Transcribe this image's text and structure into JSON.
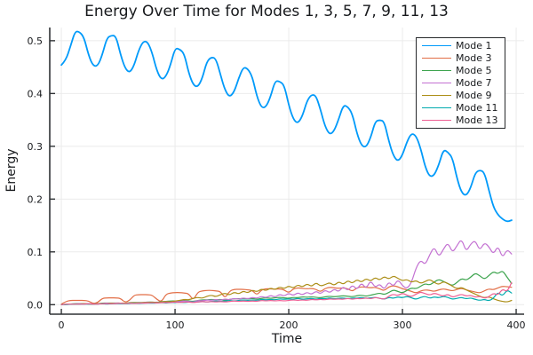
{
  "title": "Energy Over Time for Modes 1, 3, 5, 7, 9, 11, 13",
  "chart_data": {
    "type": "line",
    "title": "Energy Over Time for Modes 1, 3, 5, 7, 9, 11, 13",
    "xlabel": "Time",
    "ylabel": "Energy",
    "xlim": [
      -10.2,
      407
    ],
    "ylim": [
      -0.018,
      0.525
    ],
    "xticks": [
      0,
      100,
      200,
      300,
      400
    ],
    "xtick_labels": [
      "0",
      "100",
      "200",
      "300",
      "400"
    ],
    "yticks": [
      0.0,
      0.1,
      0.2,
      0.3,
      0.4,
      0.5
    ],
    "ytick_labels": [
      "0.0",
      "0.1",
      "0.2",
      "0.3",
      "0.4",
      "0.5"
    ],
    "grid": true,
    "legend_position": "top-right",
    "axis_color": "#2f3235",
    "grid_color": "#ebebeb",
    "background_color": "#ffffff",
    "x": [
      0,
      4,
      8,
      12,
      16,
      20,
      24,
      28,
      32,
      36,
      40,
      44,
      48,
      52,
      56,
      60,
      64,
      68,
      72,
      76,
      80,
      84,
      88,
      92,
      96,
      100,
      104,
      108,
      112,
      116,
      120,
      124,
      128,
      132,
      136,
      140,
      144,
      148,
      152,
      156,
      160,
      164,
      168,
      172,
      176,
      180,
      184,
      188,
      192,
      196,
      200,
      204,
      208,
      212,
      216,
      220,
      224,
      228,
      232,
      236,
      240,
      244,
      248,
      252,
      256,
      260,
      264,
      268,
      272,
      276,
      280,
      284,
      288,
      292,
      296,
      300,
      304,
      308,
      312,
      316,
      320,
      324,
      328,
      332,
      336,
      340,
      344,
      348,
      352,
      356,
      360,
      364,
      368,
      372,
      376,
      380,
      384,
      388,
      392,
      396
    ],
    "series": [
      {
        "name": "Mode 1",
        "color": "#009AFA",
        "width": 1.8,
        "values": [
          0.454,
          0.463,
          0.489,
          0.518,
          0.517,
          0.506,
          0.472,
          0.452,
          0.452,
          0.473,
          0.505,
          0.51,
          0.509,
          0.474,
          0.448,
          0.439,
          0.453,
          0.482,
          0.499,
          0.498,
          0.476,
          0.443,
          0.426,
          0.432,
          0.454,
          0.486,
          0.484,
          0.476,
          0.439,
          0.416,
          0.412,
          0.429,
          0.461,
          0.469,
          0.466,
          0.435,
          0.406,
          0.393,
          0.403,
          0.429,
          0.45,
          0.447,
          0.432,
          0.394,
          0.373,
          0.374,
          0.394,
          0.424,
          0.423,
          0.416,
          0.378,
          0.351,
          0.343,
          0.357,
          0.386,
          0.398,
          0.396,
          0.369,
          0.337,
          0.322,
          0.329,
          0.352,
          0.378,
          0.375,
          0.361,
          0.324,
          0.301,
          0.298,
          0.316,
          0.347,
          0.35,
          0.347,
          0.31,
          0.282,
          0.271,
          0.283,
          0.309,
          0.325,
          0.32,
          0.296,
          0.261,
          0.242,
          0.245,
          0.265,
          0.294,
          0.289,
          0.278,
          0.239,
          0.212,
          0.206,
          0.221,
          0.25,
          0.255,
          0.251,
          0.217,
          0.185,
          0.17,
          0.162,
          0.157,
          0.16
        ]
      },
      {
        "name": "Mode 3",
        "color": "#E26E46",
        "width": 1.2,
        "values": [
          0.001,
          0.006,
          0.008,
          0.008,
          0.008,
          0.008,
          0.007,
          0.002,
          0.004,
          0.012,
          0.013,
          0.013,
          0.013,
          0.012,
          0.004,
          0.008,
          0.018,
          0.019,
          0.019,
          0.019,
          0.018,
          0.01,
          0.005,
          0.02,
          0.022,
          0.023,
          0.023,
          0.022,
          0.021,
          0.008,
          0.024,
          0.026,
          0.027,
          0.027,
          0.026,
          0.025,
          0.012,
          0.026,
          0.029,
          0.029,
          0.029,
          0.028,
          0.027,
          0.018,
          0.028,
          0.03,
          0.03,
          0.029,
          0.03,
          0.028,
          0.022,
          0.03,
          0.032,
          0.031,
          0.03,
          0.031,
          0.029,
          0.024,
          0.031,
          0.033,
          0.032,
          0.031,
          0.032,
          0.03,
          0.025,
          0.032,
          0.034,
          0.033,
          0.032,
          0.033,
          0.03,
          0.026,
          0.034,
          0.036,
          0.034,
          0.03,
          0.028,
          0.025,
          0.022,
          0.026,
          0.028,
          0.027,
          0.025,
          0.028,
          0.03,
          0.028,
          0.026,
          0.029,
          0.031,
          0.028,
          0.026,
          0.024,
          0.022,
          0.026,
          0.03,
          0.028,
          0.032,
          0.035,
          0.034,
          0.033
        ]
      },
      {
        "name": "Mode 5",
        "color": "#3DA44E",
        "width": 1.2,
        "values": [
          0.0,
          0.001,
          0.001,
          0.002,
          0.002,
          0.002,
          0.002,
          0.001,
          0.002,
          0.003,
          0.003,
          0.003,
          0.003,
          0.003,
          0.002,
          0.004,
          0.004,
          0.004,
          0.004,
          0.005,
          0.005,
          0.004,
          0.006,
          0.006,
          0.007,
          0.007,
          0.007,
          0.008,
          0.007,
          0.006,
          0.008,
          0.009,
          0.009,
          0.01,
          0.009,
          0.01,
          0.008,
          0.01,
          0.011,
          0.011,
          0.012,
          0.011,
          0.012,
          0.01,
          0.012,
          0.013,
          0.012,
          0.013,
          0.014,
          0.013,
          0.012,
          0.014,
          0.013,
          0.015,
          0.014,
          0.015,
          0.014,
          0.013,
          0.015,
          0.016,
          0.015,
          0.016,
          0.017,
          0.016,
          0.015,
          0.017,
          0.018,
          0.016,
          0.018,
          0.02,
          0.022,
          0.019,
          0.023,
          0.028,
          0.025,
          0.022,
          0.027,
          0.032,
          0.03,
          0.035,
          0.04,
          0.037,
          0.043,
          0.048,
          0.044,
          0.04,
          0.036,
          0.042,
          0.05,
          0.046,
          0.052,
          0.06,
          0.055,
          0.048,
          0.055,
          0.063,
          0.058,
          0.065,
          0.052,
          0.04
        ]
      },
      {
        "name": "Mode 7",
        "color": "#C371D2",
        "width": 1.2,
        "values": [
          0.0,
          0.001,
          0.001,
          0.001,
          0.002,
          0.001,
          0.002,
          0.001,
          0.002,
          0.002,
          0.003,
          0.002,
          0.003,
          0.003,
          0.002,
          0.003,
          0.004,
          0.003,
          0.004,
          0.005,
          0.004,
          0.005,
          0.004,
          0.006,
          0.005,
          0.007,
          0.006,
          0.007,
          0.006,
          0.005,
          0.008,
          0.007,
          0.009,
          0.008,
          0.01,
          0.008,
          0.011,
          0.009,
          0.012,
          0.01,
          0.013,
          0.011,
          0.014,
          0.012,
          0.016,
          0.013,
          0.018,
          0.014,
          0.02,
          0.016,
          0.022,
          0.017,
          0.023,
          0.018,
          0.024,
          0.019,
          0.026,
          0.02,
          0.028,
          0.022,
          0.03,
          0.024,
          0.035,
          0.026,
          0.038,
          0.028,
          0.042,
          0.03,
          0.046,
          0.032,
          0.04,
          0.028,
          0.044,
          0.034,
          0.048,
          0.036,
          0.03,
          0.042,
          0.07,
          0.085,
          0.075,
          0.095,
          0.11,
          0.09,
          0.105,
          0.118,
          0.098,
          0.112,
          0.125,
          0.1,
          0.115,
          0.122,
          0.102,
          0.118,
          0.11,
          0.095,
          0.112,
          0.088,
          0.105,
          0.096
        ]
      },
      {
        "name": "Mode 9",
        "color": "#AC8E17",
        "width": 1.2,
        "values": [
          0.0,
          0.001,
          0.001,
          0.001,
          0.001,
          0.002,
          0.001,
          0.001,
          0.002,
          0.002,
          0.002,
          0.003,
          0.002,
          0.003,
          0.003,
          0.003,
          0.004,
          0.003,
          0.004,
          0.004,
          0.005,
          0.004,
          0.005,
          0.006,
          0.005,
          0.007,
          0.008,
          0.01,
          0.009,
          0.012,
          0.014,
          0.012,
          0.016,
          0.018,
          0.015,
          0.019,
          0.022,
          0.018,
          0.024,
          0.02,
          0.026,
          0.022,
          0.028,
          0.024,
          0.03,
          0.026,
          0.032,
          0.028,
          0.034,
          0.03,
          0.036,
          0.031,
          0.038,
          0.033,
          0.04,
          0.034,
          0.042,
          0.035,
          0.038,
          0.042,
          0.036,
          0.044,
          0.038,
          0.046,
          0.04,
          0.048,
          0.042,
          0.05,
          0.044,
          0.052,
          0.046,
          0.054,
          0.048,
          0.055,
          0.05,
          0.045,
          0.048,
          0.042,
          0.046,
          0.04,
          0.044,
          0.048,
          0.042,
          0.038,
          0.044,
          0.04,
          0.035,
          0.03,
          0.033,
          0.028,
          0.024,
          0.02,
          0.016,
          0.013,
          0.015,
          0.011,
          0.008,
          0.006,
          0.005,
          0.008
        ]
      },
      {
        "name": "Mode 11",
        "color": "#00AAAE",
        "width": 1.2,
        "values": [
          0.0,
          0.0,
          0.001,
          0.001,
          0.001,
          0.001,
          0.001,
          0.001,
          0.001,
          0.002,
          0.001,
          0.002,
          0.002,
          0.002,
          0.002,
          0.002,
          0.003,
          0.002,
          0.003,
          0.003,
          0.003,
          0.003,
          0.004,
          0.003,
          0.004,
          0.004,
          0.005,
          0.004,
          0.005,
          0.005,
          0.005,
          0.006,
          0.005,
          0.006,
          0.007,
          0.006,
          0.007,
          0.008,
          0.007,
          0.008,
          0.009,
          0.008,
          0.009,
          0.008,
          0.01,
          0.009,
          0.01,
          0.009,
          0.011,
          0.01,
          0.011,
          0.01,
          0.012,
          0.01,
          0.011,
          0.012,
          0.01,
          0.012,
          0.011,
          0.013,
          0.011,
          0.012,
          0.013,
          0.011,
          0.013,
          0.012,
          0.014,
          0.012,
          0.013,
          0.014,
          0.012,
          0.01,
          0.014,
          0.012,
          0.015,
          0.013,
          0.016,
          0.013,
          0.01,
          0.014,
          0.016,
          0.012,
          0.015,
          0.013,
          0.016,
          0.014,
          0.01,
          0.012,
          0.014,
          0.011,
          0.013,
          0.01,
          0.008,
          0.01,
          0.007,
          0.012,
          0.024,
          0.016,
          0.028,
          0.022
        ]
      },
      {
        "name": "Mode 13",
        "color": "#ED5E93",
        "width": 1.2,
        "values": [
          0.0,
          0.001,
          0.001,
          0.001,
          0.001,
          0.001,
          0.002,
          0.001,
          0.001,
          0.002,
          0.002,
          0.002,
          0.002,
          0.003,
          0.002,
          0.003,
          0.002,
          0.003,
          0.003,
          0.003,
          0.004,
          0.003,
          0.004,
          0.004,
          0.004,
          0.005,
          0.004,
          0.005,
          0.005,
          0.004,
          0.005,
          0.006,
          0.005,
          0.006,
          0.005,
          0.006,
          0.005,
          0.006,
          0.007,
          0.006,
          0.007,
          0.006,
          0.007,
          0.006,
          0.008,
          0.007,
          0.008,
          0.007,
          0.008,
          0.007,
          0.008,
          0.009,
          0.008,
          0.009,
          0.008,
          0.01,
          0.009,
          0.01,
          0.009,
          0.011,
          0.01,
          0.011,
          0.01,
          0.012,
          0.01,
          0.012,
          0.011,
          0.013,
          0.011,
          0.014,
          0.012,
          0.01,
          0.016,
          0.02,
          0.017,
          0.022,
          0.018,
          0.015,
          0.02,
          0.024,
          0.021,
          0.018,
          0.022,
          0.019,
          0.016,
          0.02,
          0.014,
          0.017,
          0.02,
          0.016,
          0.018,
          0.014,
          0.016,
          0.012,
          0.015,
          0.022,
          0.018,
          0.03,
          0.024,
          0.042
        ]
      }
    ]
  }
}
